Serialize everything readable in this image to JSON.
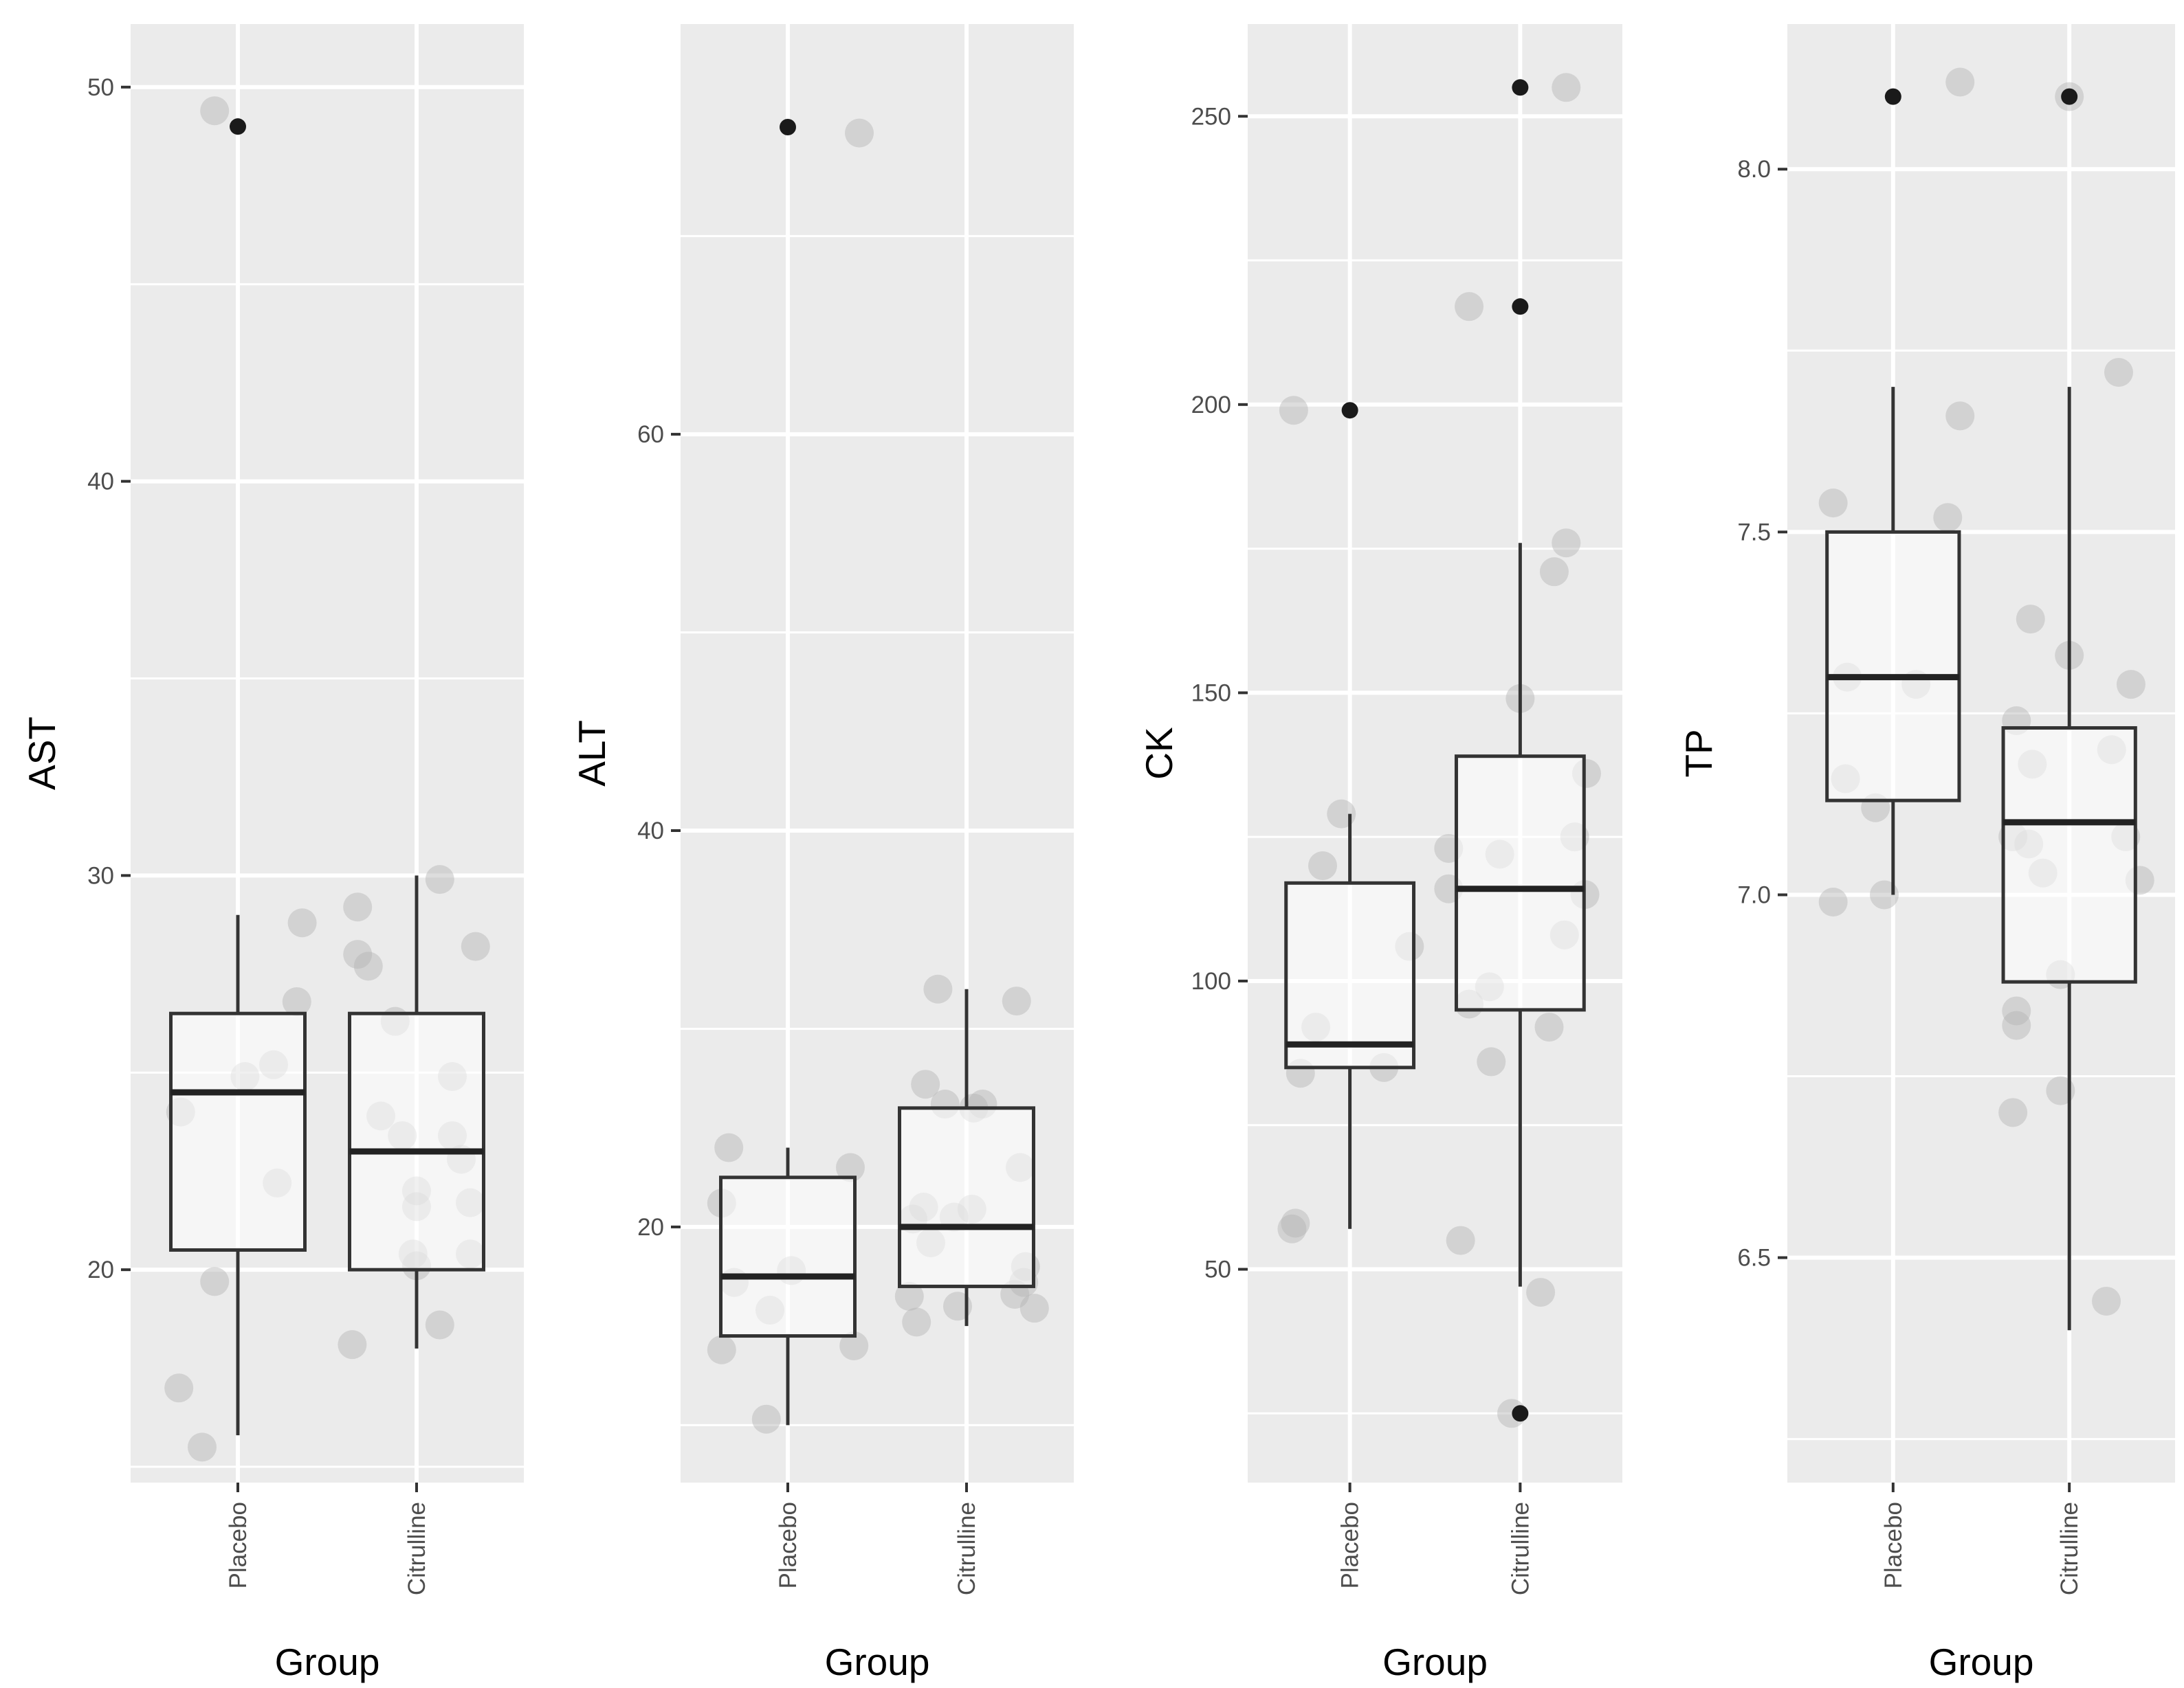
{
  "chart_data": [
    {
      "type": "boxplot",
      "title": "",
      "xlabel": "Group",
      "ylabel": "AST",
      "ylim": [
        14.6,
        51.6
      ],
      "yticks": [
        20,
        30,
        40,
        50
      ],
      "categories": [
        "Placebo",
        "Citrulline"
      ],
      "boxes": [
        {
          "category": "Placebo",
          "q1": 20.5,
          "median": 24.5,
          "q3": 26.5,
          "whisker_low": 15.8,
          "whisker_high": 29,
          "outliers": [
            49
          ]
        },
        {
          "category": "Citrulline",
          "q1": 20,
          "median": 23,
          "q3": 26.5,
          "whisker_low": 18,
          "whisker_high": 30,
          "outliers": []
        }
      ],
      "jitter": [
        {
          "category": "Placebo",
          "points": [
            [
              -0.13,
              49.4
            ],
            [
              -0.33,
              17
            ],
            [
              -0.2,
              15.5
            ],
            [
              -0.13,
              19.7
            ],
            [
              0.22,
              22.2
            ],
            [
              0.33,
              26.8
            ],
            [
              0.36,
              28.8
            ],
            [
              0.2,
              25.2
            ],
            [
              0.04,
              24.9
            ],
            [
              -0.32,
              24
            ]
          ]
        },
        {
          "category": "Citrulline",
          "points": [
            [
              -0.33,
              29.2
            ],
            [
              -0.33,
              28
            ],
            [
              -0.27,
              27.7
            ],
            [
              -0.12,
              26.3
            ],
            [
              -0.2,
              23.9
            ],
            [
              -0.08,
              23.4
            ],
            [
              -0.36,
              18.1
            ],
            [
              0.13,
              29.9
            ],
            [
              0.33,
              28.2
            ],
            [
              0.2,
              24.9
            ],
            [
              0.2,
              23.4
            ],
            [
              0.25,
              22.8
            ],
            [
              0.3,
              21.7
            ],
            [
              0,
              22
            ],
            [
              0,
              21.6
            ],
            [
              -0.02,
              20.4
            ],
            [
              0,
              20.1
            ],
            [
              0.3,
              20.4
            ],
            [
              0.13,
              18.6
            ]
          ]
        }
      ]
    },
    {
      "type": "boxplot",
      "title": "",
      "xlabel": "Group",
      "ylabel": "ALT",
      "ylim": [
        7.1,
        80.7
      ],
      "yticks": [
        20,
        40,
        60
      ],
      "categories": [
        "Placebo",
        "Citrulline"
      ],
      "boxes": [
        {
          "category": "Placebo",
          "q1": 14.5,
          "median": 17.5,
          "q3": 22.5,
          "whisker_low": 10,
          "whisker_high": 24,
          "outliers": [
            75.5
          ]
        },
        {
          "category": "Citrulline",
          "q1": 17,
          "median": 20,
          "q3": 26,
          "whisker_low": 15,
          "whisker_high": 32,
          "outliers": []
        }
      ],
      "jitter": [
        {
          "category": "Placebo",
          "points": [
            [
              0.4,
              75.2
            ],
            [
              -0.33,
              24
            ],
            [
              -0.37,
              21.2
            ],
            [
              -0.3,
              17.2
            ],
            [
              0.02,
              17.8
            ],
            [
              -0.1,
              15.8
            ],
            [
              -0.37,
              13.8
            ],
            [
              -0.12,
              10.3
            ],
            [
              0.35,
              23
            ],
            [
              0.37,
              14
            ]
          ]
        },
        {
          "category": "Citrulline",
          "points": [
            [
              -0.16,
              32
            ],
            [
              -0.23,
              27.2
            ],
            [
              -0.12,
              26.2
            ],
            [
              0.04,
              26
            ],
            [
              0.09,
              26.2
            ],
            [
              -0.24,
              21
            ],
            [
              -0.3,
              20.4
            ],
            [
              -0.2,
              19.2
            ],
            [
              -0.07,
              20.5
            ],
            [
              0.03,
              20.9
            ],
            [
              -0.32,
              16.5
            ],
            [
              -0.28,
              15.2
            ],
            [
              -0.05,
              16
            ],
            [
              0.28,
              31.4
            ],
            [
              0.3,
              23
            ],
            [
              0.32,
              17.2
            ],
            [
              0.33,
              18
            ],
            [
              0.38,
              15.9
            ],
            [
              0.27,
              16.6
            ]
          ]
        }
      ]
    },
    {
      "type": "boxplot",
      "title": "",
      "xlabel": "Group",
      "ylabel": "CK",
      "ylim": [
        13,
        266
      ],
      "yticks": [
        50,
        100,
        150,
        200,
        250
      ],
      "categories": [
        "Placebo",
        "Citrulline"
      ],
      "boxes": [
        {
          "category": "Placebo",
          "q1": 85,
          "median": 89,
          "q3": 117,
          "whisker_low": 57,
          "whisker_high": 129,
          "outliers": [
            199
          ]
        },
        {
          "category": "Citrulline",
          "q1": 95,
          "median": 116,
          "q3": 139,
          "whisker_low": 47,
          "whisker_high": 176,
          "outliers": [
            255,
            217,
            25
          ]
        }
      ],
      "jitter": [
        {
          "category": "Placebo",
          "points": [
            [
              -0.33,
              199
            ],
            [
              -0.05,
              129
            ],
            [
              -0.16,
              120
            ],
            [
              -0.2,
              92
            ],
            [
              -0.29,
              84
            ],
            [
              0.2,
              85
            ],
            [
              0.35,
              106
            ],
            [
              -0.32,
              58
            ],
            [
              -0.34,
              57
            ]
          ]
        },
        {
          "category": "Citrulline",
          "points": [
            [
              0.27,
              255
            ],
            [
              -0.3,
              217
            ],
            [
              0.27,
              176
            ],
            [
              0.2,
              171
            ],
            [
              0.39,
              136
            ],
            [
              0.32,
              125
            ],
            [
              0,
              149
            ],
            [
              -0.12,
              122
            ],
            [
              -0.42,
              123
            ],
            [
              -0.42,
              116
            ],
            [
              -0.18,
              99
            ],
            [
              -0.3,
              96
            ],
            [
              -0.17,
              86
            ],
            [
              -0.35,
              55
            ],
            [
              0.12,
              46
            ],
            [
              -0.05,
              25
            ],
            [
              0.26,
              108
            ],
            [
              0.38,
              115
            ],
            [
              0.17,
              92
            ]
          ]
        }
      ]
    },
    {
      "type": "boxplot",
      "title": "",
      "xlabel": "Group",
      "ylabel": "TP",
      "ylim": [
        6.19,
        8.2
      ],
      "yticks": [
        6.5,
        7.0,
        7.5,
        8.0
      ],
      "tick_labels": [
        "6.5",
        "7.0",
        "7.5",
        "8.0"
      ],
      "categories": [
        "Placebo",
        "Citrulline"
      ],
      "boxes": [
        {
          "category": "Placebo",
          "q1": 7.13,
          "median": 7.3,
          "q3": 7.5,
          "whisker_low": 7,
          "whisker_high": 7.7,
          "outliers": [
            8.1
          ]
        },
        {
          "category": "Citrulline",
          "q1": 6.88,
          "median": 7.1,
          "q3": 7.23,
          "whisker_low": 6.4,
          "whisker_high": 7.7,
          "outliers": [
            8.1
          ]
        }
      ],
      "jitter": [
        {
          "category": "Placebo",
          "points": [
            [
              0.38,
              8.12
            ],
            [
              0.38,
              7.66
            ],
            [
              0.31,
              7.52
            ],
            [
              -0.34,
              7.54
            ],
            [
              -0.26,
              7.3
            ],
            [
              0.13,
              7.29
            ],
            [
              -0.27,
              7.16
            ],
            [
              -0.1,
              7.12
            ],
            [
              -0.34,
              6.99
            ],
            [
              -0.05,
              7
            ]
          ]
        },
        {
          "category": "Citrulline",
          "points": [
            [
              0,
              8.1
            ],
            [
              0.28,
              7.72
            ],
            [
              -0.22,
              7.38
            ],
            [
              0,
              7.33
            ],
            [
              0.35,
              7.29
            ],
            [
              -0.3,
              7.24
            ],
            [
              -0.21,
              7.18
            ],
            [
              0.24,
              7.2
            ],
            [
              -0.32,
              7.08
            ],
            [
              -0.23,
              7.07
            ],
            [
              -0.15,
              7.03
            ],
            [
              0.32,
              7.08
            ],
            [
              0.4,
              7.02
            ],
            [
              -0.05,
              6.89
            ],
            [
              -0.3,
              6.84
            ],
            [
              -0.3,
              6.82
            ],
            [
              -0.05,
              6.73
            ],
            [
              -0.32,
              6.7
            ],
            [
              0.21,
              6.44
            ]
          ]
        }
      ]
    }
  ]
}
